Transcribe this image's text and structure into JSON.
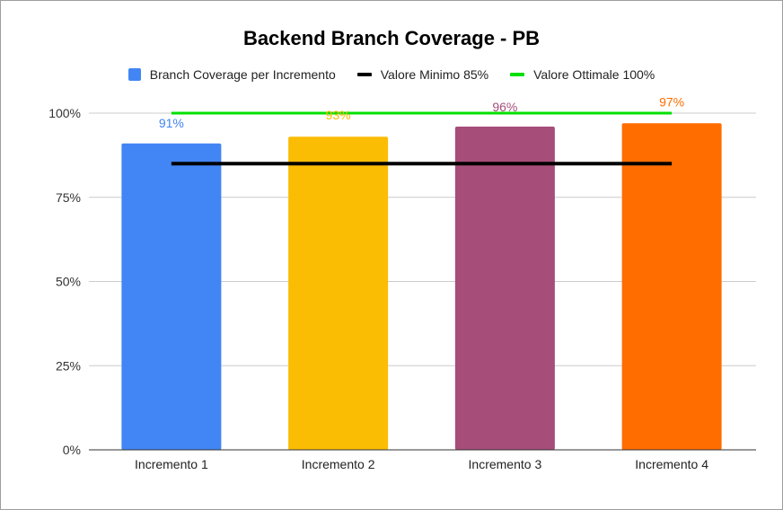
{
  "chart_data": {
    "type": "bar",
    "title": "Backend Branch Coverage - PB",
    "categories": [
      "Incremento 1",
      "Incremento 2",
      "Incremento 3",
      "Incremento 4"
    ],
    "series": [
      {
        "name": "Branch Coverage per Incremento",
        "values": [
          91,
          93,
          96,
          97
        ],
        "data_labels": [
          "91%",
          "93%",
          "96%",
          "97%"
        ],
        "colors": [
          "#4285F4",
          "#FBBC04",
          "#A64D79",
          "#FF6D01"
        ]
      },
      {
        "name": "Valore Minimo 85%",
        "type": "line",
        "values": [
          85,
          85,
          85,
          85
        ],
        "color": "#000000"
      },
      {
        "name": "Valore Ottimale 100%",
        "type": "line",
        "values": [
          100,
          100,
          100,
          100
        ],
        "color": "#00E000"
      }
    ],
    "ylim": [
      0,
      100
    ],
    "yticks": [
      0,
      25,
      50,
      75,
      100
    ],
    "ytick_labels": [
      "0%",
      "25%",
      "50%",
      "75%",
      "100%"
    ],
    "grid": true,
    "legend_position": "top"
  }
}
